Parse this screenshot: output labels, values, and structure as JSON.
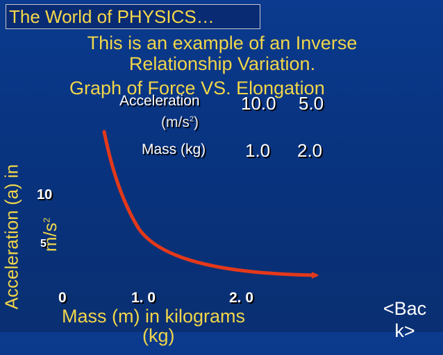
{
  "slide": {
    "title": "The World of PHYSICS…",
    "subtitle_line1": "This is an example of an Inverse",
    "subtitle_line2": "Relationship Variation.",
    "graph_title": "Graph of Force VS. Elongation"
  },
  "table": {
    "row1_label": "Acceleration",
    "row1_unit": "(m/s",
    "row1_unit_power": "2",
    "row1_unit_close": ")",
    "row1_values": [
      "10.0",
      "5.0"
    ],
    "row2_label": "Mass (kg)",
    "row2_values": [
      "1.0",
      "2.0"
    ]
  },
  "graph": {
    "y_axis_label": "Acceleration (a) in",
    "y_axis_unit": "m/s",
    "y_axis_unit_power": "2",
    "y_ticks": [
      "10",
      "5"
    ],
    "x_ticks": [
      "0",
      "1. 0",
      "2. 0"
    ],
    "x_axis_label": "Mass (m) in kilograms",
    "x_axis_label_cut": "(kg)",
    "curve_color": "#e3391b"
  },
  "nav": {
    "back_line1": "<Bac",
    "back_line2": "k>"
  }
}
